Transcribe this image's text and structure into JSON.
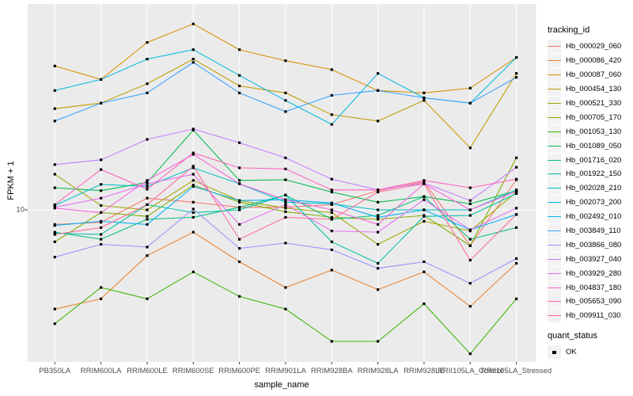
{
  "chart_data": {
    "type": "line",
    "title": "",
    "xlabel": "sample_name",
    "ylabel": "FPKM + 1",
    "y_scale": "log10",
    "y_tick_labels": [
      "10"
    ],
    "ylim_approx": [
      1.9,
      100
    ],
    "grid": "ggplot-grey-panel-white-gridlines",
    "panel_color": "#EBEBEB",
    "gridline_color": "#FFFFFF",
    "axis_text_color": "#4D4D4D",
    "marker": {
      "shape": "square",
      "color": "#000000"
    },
    "categories": [
      "PB350LA",
      "RRIM600LA",
      "RRIM600LE",
      "RRIM600SE",
      "RRIM600PE",
      "RRIM901LA",
      "RRIM928BA",
      "RRIM928LA",
      "RRIM928LE",
      "RRII105LA_Control",
      "RRII105LA_Stressed"
    ],
    "legend": {
      "title": "tracking_id",
      "position": "right"
    },
    "legend2": {
      "title": "quant_status",
      "items": [
        {
          "label": "OK",
          "marker": "square",
          "color": "#000000"
        }
      ]
    },
    "series": [
      {
        "name": "Hb_000029_060",
        "color": "#F8766D",
        "values": [
          8.5,
          8.7,
          11.4,
          10.9,
          10.3,
          10.3,
          10.6,
          12.4,
          13.7,
          6.7,
          14.0
        ]
      },
      {
        "name": "Hb_000086_420",
        "color": "#EA8331",
        "values": [
          3.3,
          3.7,
          6.0,
          7.8,
          5.6,
          4.2,
          5.1,
          4.1,
          5.0,
          3.4,
          5.5
        ]
      },
      {
        "name": "Hb_000087_060",
        "color": "#D89000",
        "values": [
          50,
          43,
          65,
          80,
          60,
          53,
          48,
          38,
          37,
          39,
          55
        ]
      },
      {
        "name": "Hb_000454_130",
        "color": "#C09B00",
        "values": [
          31,
          33,
          41,
          54,
          40,
          37,
          29,
          27,
          34,
          20,
          46
        ]
      },
      {
        "name": "Hb_000521_330",
        "color": "#A3A500",
        "values": [
          14.9,
          10.5,
          10.0,
          13.9,
          11.1,
          10.2,
          9.7,
          6.8,
          8.8,
          7.9,
          12.2
        ]
      },
      {
        "name": "Hb_000705_170",
        "color": "#7CAE00",
        "values": [
          7.0,
          9.7,
          9.3,
          13.2,
          10.9,
          9.8,
          9.2,
          9.0,
          9.4,
          6.7,
          17.9
        ]
      },
      {
        "name": "Hb_001053_130",
        "color": "#39B600",
        "values": [
          2.8,
          4.2,
          3.7,
          5.0,
          3.8,
          3.3,
          2.3,
          2.3,
          3.5,
          2.0,
          3.7
        ]
      },
      {
        "name": "Hb_001089_050",
        "color": "#00BB4E",
        "values": [
          12.8,
          12.4,
          13.6,
          24.4,
          13.9,
          14.0,
          12.2,
          10.9,
          11.6,
          10.7,
          12.4
        ]
      },
      {
        "name": "Hb_001716_020",
        "color": "#00BF7D",
        "values": [
          7.8,
          7.2,
          9.0,
          9.2,
          10.3,
          11.8,
          9.0,
          9.4,
          11.6,
          7.2,
          8.2
        ]
      },
      {
        "name": "Hb_001922_150",
        "color": "#00C1A3",
        "values": [
          7.7,
          7.6,
          10.6,
          9.7,
          10.0,
          11.8,
          7.0,
          5.5,
          9.3,
          9.4,
          12.0
        ]
      },
      {
        "name": "Hb_002028_210",
        "color": "#00BFC4",
        "values": [
          10.5,
          13.3,
          13.0,
          16.0,
          13.4,
          10.9,
          10.7,
          10.0,
          10.0,
          10.0,
          12.5
        ]
      },
      {
        "name": "Hb_002073_200",
        "color": "#00BAE0",
        "values": [
          38,
          43,
          54,
          60,
          45,
          34,
          26,
          46,
          35,
          33,
          55
        ]
      },
      {
        "name": "Hb_002492_010",
        "color": "#00B0F6",
        "values": [
          8.4,
          8.8,
          8.5,
          13.0,
          11.1,
          11.2,
          10.8,
          9.2,
          10.0,
          8.0,
          9.5
        ]
      },
      {
        "name": "Hb_003849_110",
        "color": "#35A2FF",
        "values": [
          27,
          33,
          37,
          52,
          37,
          30,
          36,
          38,
          35,
          33,
          44
        ]
      },
      {
        "name": "Hb_003866_080",
        "color": "#9590FF",
        "values": [
          5.9,
          6.8,
          6.6,
          10.1,
          6.5,
          6.9,
          6.4,
          5.2,
          5.6,
          4.4,
          5.8
        ]
      },
      {
        "name": "Hb_003927_040",
        "color": "#C77CFF",
        "values": [
          16.6,
          17.5,
          22.0,
          24.7,
          21.2,
          17.9,
          14.1,
          12.5,
          13.5,
          11.1,
          16.1
        ]
      },
      {
        "name": "Hb_003929_280",
        "color": "#E76BF3",
        "values": [
          10.3,
          11.4,
          13.4,
          14.9,
          8.5,
          10.6,
          7.9,
          7.8,
          11.2,
          8.0,
          10.2
        ]
      },
      {
        "name": "Hb_004837_180",
        "color": "#FA62DB",
        "values": [
          10.2,
          9.7,
          13.9,
          18.6,
          13.4,
          11.2,
          10.0,
          8.5,
          13.4,
          10.0,
          12.3
        ]
      },
      {
        "name": "Hb_005653_090",
        "color": "#FF62BC",
        "values": [
          10.6,
          15.7,
          12.6,
          18.9,
          16.0,
          15.8,
          12.5,
          12.5,
          13.9,
          12.8,
          14.1
        ]
      },
      {
        "name": "Hb_009911_030",
        "color": "#FF6A98",
        "values": [
          7.6,
          8.2,
          10.6,
          16.3,
          7.2,
          9.2,
          9.0,
          12.2,
          13.4,
          5.7,
          9.5
        ]
      }
    ]
  }
}
